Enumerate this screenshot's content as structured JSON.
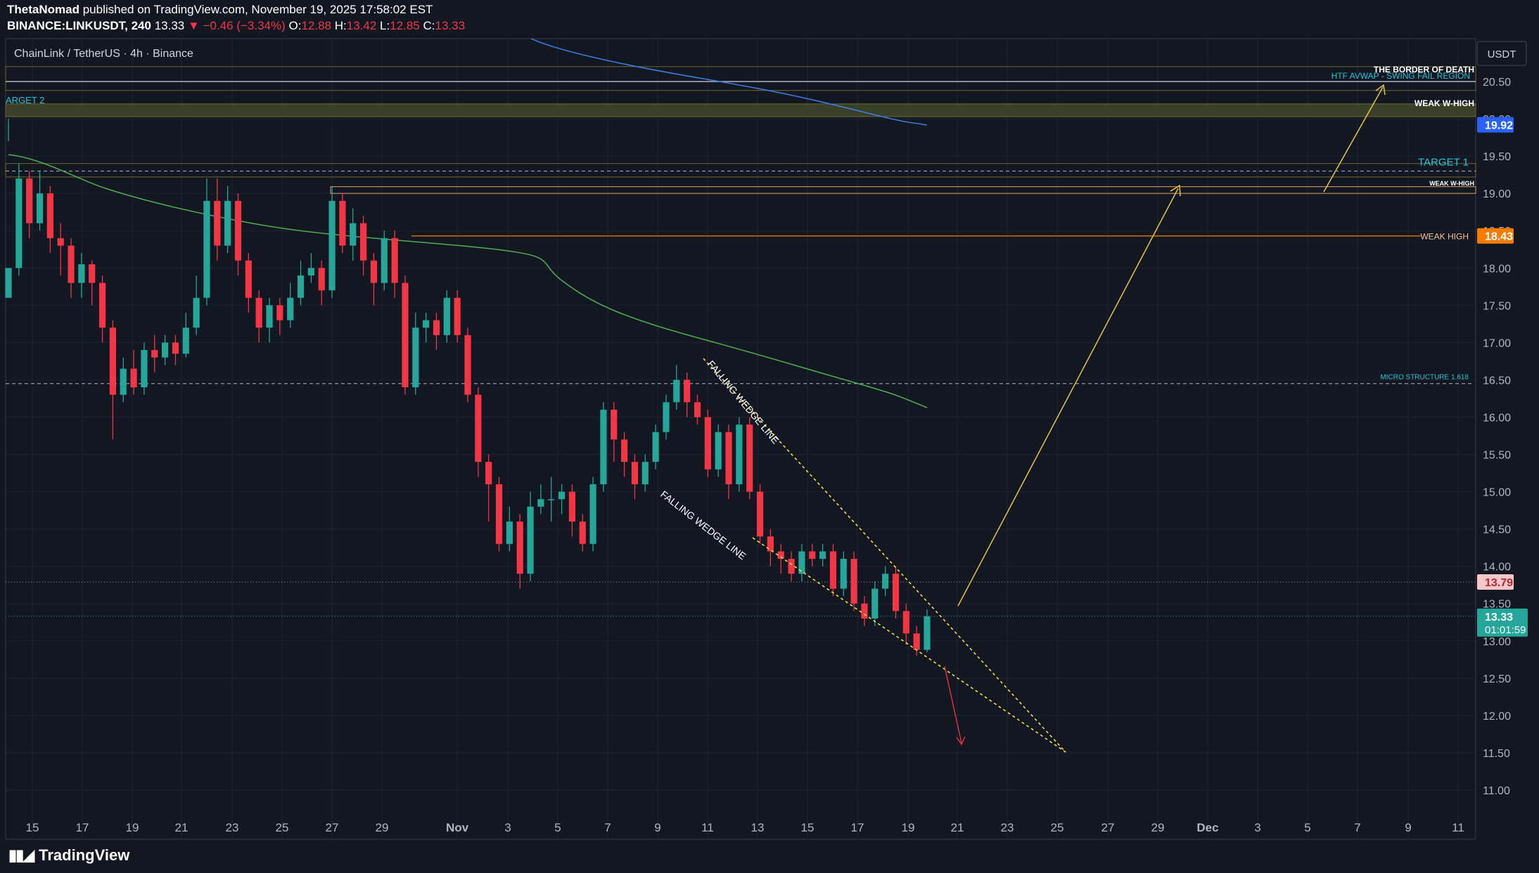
{
  "header": {
    "author": "ThetaNomad",
    "published": "published on TradingView.com, November 19, 2025 17:58:02 EST",
    "symbol": "BINANCE:LINKUSDT, 240",
    "last": "13.33",
    "arrow": "▼",
    "change": "−0.46 (−3.34%)",
    "o_label": "O:",
    "o": "12.88",
    "h_label": "H:",
    "h": "13.42",
    "l_label": "L:",
    "l": "12.85",
    "c_label": "C:",
    "c": "13.33"
  },
  "footer": {
    "brand": "TradingView",
    "logo": "tradingview-logo-icon"
  },
  "colors": {
    "bg": "#131722",
    "up": "#26a69a",
    "down": "#f23645",
    "grid": "#1f2430",
    "green_avwap": "#4caf50",
    "blue_avwap": "#2962ff",
    "orange": "#f57c00",
    "yellow": "#ffeb3b",
    "cyan": "#26c6da"
  },
  "chart_data": {
    "type": "candlestick",
    "title": "ChainLink / TetherUS · 4h · Binance",
    "currency_label": "USDT",
    "ylim": [
      10.7,
      21.0
    ],
    "y_ticks": [
      "11.00",
      "11.50",
      "12.00",
      "12.50",
      "13.00",
      "13.50",
      "14.00",
      "14.50",
      "15.00",
      "15.50",
      "16.00",
      "16.50",
      "17.00",
      "17.50",
      "18.00",
      "18.50",
      "19.00",
      "19.50",
      "20.00",
      "20.50"
    ],
    "x_ticks": [
      "15",
      "17",
      "19",
      "21",
      "23",
      "25",
      "27",
      "29",
      "Nov",
      "3",
      "5",
      "7",
      "9",
      "11",
      "13",
      "15",
      "17",
      "19",
      "21",
      "23",
      "25",
      "27",
      "29",
      "Dec",
      "3",
      "5",
      "7",
      "9",
      "11"
    ],
    "price_labels": [
      {
        "value": 19.92,
        "text": "19.92",
        "color": "#2962ff"
      },
      {
        "value": 18.43,
        "text": "18.43",
        "color": "#f57c00"
      },
      {
        "value": 13.79,
        "text": "13.79",
        "color": "#f8c8c8"
      },
      {
        "value": 13.33,
        "text": "13.33",
        "sub": "01:01:59",
        "color": "#26a69a"
      }
    ],
    "levels": [
      {
        "label": "THE BORDER OF DEATH",
        "value": 20.68
      },
      {
        "label": "HTF AVWAP - SWING FAIL REGION",
        "value": 20.5
      },
      {
        "label": "WEAK W-HIGH",
        "value": 20.15
      },
      {
        "label": "ARGET 2",
        "value": 20.15
      },
      {
        "label": "TARGET 1",
        "value": 19.3
      },
      {
        "label": "WEAK W-HIGH",
        "value": 19.05
      },
      {
        "label": "WEAK HIGH",
        "value": 18.43
      },
      {
        "label": "MICRO STRUCTURE 1.618",
        "value": 16.45
      }
    ],
    "annotations": [
      {
        "text": "FALLING WEDGE LINE",
        "line": "upper"
      },
      {
        "text": "FALLING WEDGE LINE",
        "line": "lower"
      }
    ],
    "candles": [
      [
        17.6,
        18.0,
        20.0,
        19.7
      ],
      [
        18.0,
        19.2,
        19.4,
        17.9
      ],
      [
        19.2,
        18.6,
        19.3,
        18.4
      ],
      [
        18.6,
        19.0,
        19.3,
        18.5
      ],
      [
        19.0,
        18.4,
        19.1,
        18.2
      ],
      [
        18.4,
        18.3,
        18.6,
        17.9
      ],
      [
        18.3,
        17.8,
        18.4,
        17.6
      ],
      [
        17.8,
        18.05,
        18.2,
        17.6
      ],
      [
        18.05,
        17.8,
        18.1,
        17.5
      ],
      [
        17.8,
        17.2,
        17.9,
        17.0
      ],
      [
        17.2,
        16.3,
        17.3,
        15.7
      ],
      [
        16.3,
        16.65,
        16.8,
        16.2
      ],
      [
        16.65,
        16.4,
        16.9,
        16.3
      ],
      [
        16.4,
        16.9,
        17.0,
        16.3
      ],
      [
        16.9,
        16.8,
        17.1,
        16.6
      ],
      [
        16.8,
        17.0,
        17.1,
        16.7
      ],
      [
        17.0,
        16.85,
        17.1,
        16.7
      ],
      [
        16.85,
        17.2,
        17.4,
        16.8
      ],
      [
        17.2,
        17.6,
        17.9,
        17.1
      ],
      [
        17.6,
        18.9,
        19.2,
        17.5
      ],
      [
        18.9,
        18.3,
        19.2,
        18.1
      ],
      [
        18.3,
        18.9,
        19.1,
        18.2
      ],
      [
        18.9,
        18.1,
        19.0,
        17.9
      ],
      [
        18.1,
        17.6,
        18.2,
        17.4
      ],
      [
        17.6,
        17.2,
        17.7,
        17.0
      ],
      [
        17.2,
        17.5,
        17.6,
        17.0
      ],
      [
        17.5,
        17.3,
        17.6,
        17.1
      ],
      [
        17.3,
        17.6,
        17.8,
        17.2
      ],
      [
        17.6,
        17.9,
        18.1,
        17.5
      ],
      [
        17.9,
        18.0,
        18.2,
        17.8
      ],
      [
        18.0,
        17.7,
        18.1,
        17.5
      ],
      [
        17.7,
        18.9,
        19.1,
        17.6
      ],
      [
        18.9,
        18.3,
        19.0,
        18.2
      ],
      [
        18.3,
        18.6,
        18.8,
        18.1
      ],
      [
        18.6,
        18.1,
        18.7,
        17.9
      ],
      [
        18.1,
        17.8,
        18.2,
        17.5
      ],
      [
        17.8,
        18.4,
        18.5,
        17.7
      ],
      [
        18.4,
        17.8,
        18.5,
        17.6
      ],
      [
        17.8,
        16.4,
        17.9,
        16.3
      ],
      [
        16.4,
        17.2,
        17.4,
        16.3
      ],
      [
        17.2,
        17.3,
        17.4,
        17.0
      ],
      [
        17.3,
        17.1,
        17.4,
        16.9
      ],
      [
        17.1,
        17.6,
        17.7,
        17.0
      ],
      [
        17.6,
        17.1,
        17.7,
        17.0
      ],
      [
        17.1,
        16.3,
        17.2,
        16.2
      ],
      [
        16.3,
        15.4,
        16.4,
        15.2
      ],
      [
        15.4,
        15.1,
        15.5,
        14.6
      ],
      [
        15.1,
        14.3,
        15.2,
        14.2
      ],
      [
        14.3,
        14.6,
        14.8,
        14.2
      ],
      [
        14.6,
        13.9,
        14.7,
        13.7
      ],
      [
        13.9,
        14.8,
        15.0,
        13.8
      ],
      [
        14.8,
        14.9,
        15.1,
        14.7
      ],
      [
        14.9,
        14.9,
        15.2,
        14.6
      ],
      [
        14.9,
        15.0,
        15.1,
        14.7
      ],
      [
        15.0,
        14.6,
        15.1,
        14.4
      ],
      [
        14.6,
        14.3,
        14.7,
        14.2
      ],
      [
        14.3,
        15.1,
        15.2,
        14.2
      ],
      [
        15.1,
        16.1,
        16.2,
        15.0
      ],
      [
        16.1,
        15.7,
        16.2,
        15.4
      ],
      [
        15.7,
        15.4,
        15.8,
        15.2
      ],
      [
        15.4,
        15.1,
        15.5,
        14.9
      ],
      [
        15.1,
        15.4,
        15.5,
        15.0
      ],
      [
        15.4,
        15.8,
        15.9,
        15.3
      ],
      [
        15.8,
        16.2,
        16.3,
        15.7
      ],
      [
        16.2,
        16.5,
        16.7,
        16.1
      ],
      [
        16.5,
        16.2,
        16.6,
        16.0
      ],
      [
        16.2,
        16.0,
        16.3,
        15.9
      ],
      [
        16.0,
        15.3,
        16.1,
        15.2
      ],
      [
        15.3,
        15.8,
        15.9,
        15.2
      ],
      [
        15.8,
        15.1,
        15.9,
        14.9
      ],
      [
        15.1,
        15.9,
        16.0,
        15.0
      ],
      [
        15.9,
        15.0,
        16.0,
        14.9
      ],
      [
        15.0,
        14.4,
        15.1,
        14.3
      ],
      [
        14.4,
        14.2,
        14.5,
        14.0
      ],
      [
        14.2,
        14.1,
        14.3,
        13.9
      ],
      [
        14.1,
        13.9,
        14.2,
        13.8
      ],
      [
        13.9,
        14.2,
        14.3,
        13.8
      ],
      [
        14.2,
        14.1,
        14.3,
        14.0
      ],
      [
        14.1,
        14.2,
        14.3,
        14.0
      ],
      [
        14.2,
        13.7,
        14.3,
        13.6
      ],
      [
        13.7,
        14.1,
        14.2,
        13.6
      ],
      [
        14.1,
        13.5,
        14.2,
        13.4
      ],
      [
        13.5,
        13.3,
        13.6,
        13.2
      ],
      [
        13.3,
        13.7,
        13.8,
        13.2
      ],
      [
        13.7,
        13.9,
        14.0,
        13.6
      ],
      [
        13.9,
        13.4,
        14.0,
        13.3
      ],
      [
        13.4,
        13.1,
        13.5,
        12.95
      ],
      [
        13.1,
        12.88,
        13.2,
        12.8
      ],
      [
        12.88,
        13.33,
        13.42,
        12.85
      ]
    ]
  }
}
